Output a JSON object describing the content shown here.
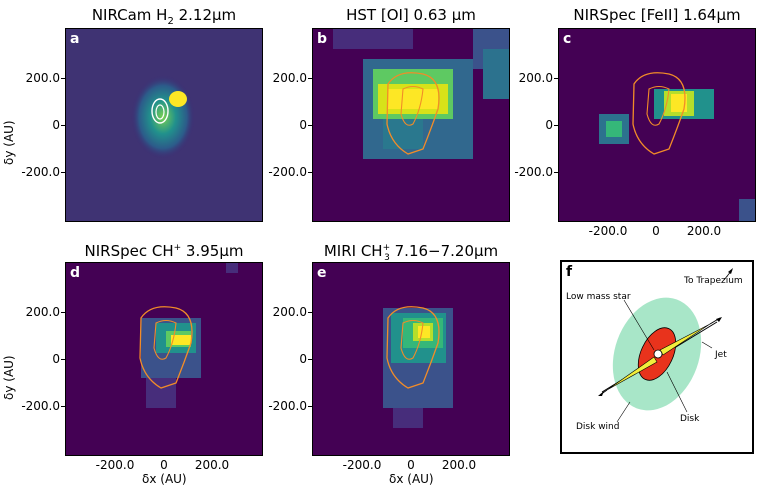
{
  "panels": [
    {
      "letter": "a",
      "title_main": "NIRCam H",
      "title_sub": "2",
      "title_rest": " 2.12μm"
    },
    {
      "letter": "b",
      "title_main": "HST [OI] 0.63 μm",
      "title_sub": "",
      "title_rest": ""
    },
    {
      "letter": "c",
      "title_main": "NIRSpec [FeII] 1.64μm",
      "title_sub": "",
      "title_rest": ""
    },
    {
      "letter": "d",
      "title_main": "NIRSpec CH",
      "title_sup": "+",
      "title_rest": " 3.95μm"
    },
    {
      "letter": "e",
      "title_main": "MIRI CH",
      "title_sup": "+",
      "title_sub": "3",
      "title_rest": " 7.16−7.20μm"
    },
    {
      "letter": "f"
    }
  ],
  "axes": {
    "yticks": [
      "200.0",
      "0",
      "-200.0"
    ],
    "xticks": [
      "-200.0",
      "0",
      "200.0"
    ],
    "ylabel": "δy (AU)",
    "xlabel": "δx (AU)"
  },
  "schematic": {
    "to_trapezium": "To Trapezium",
    "low_mass_star": "Low mass star",
    "jet": "Jet",
    "disk": "Disk",
    "disk_wind": "Disk wind"
  },
  "colors": {
    "background": "#440154",
    "contour": "#f28c28",
    "contour_white": "#ffffff",
    "disk_wind": "#a8e6c8",
    "disk": "#e8331c",
    "jet": "#f2ee3c"
  }
}
